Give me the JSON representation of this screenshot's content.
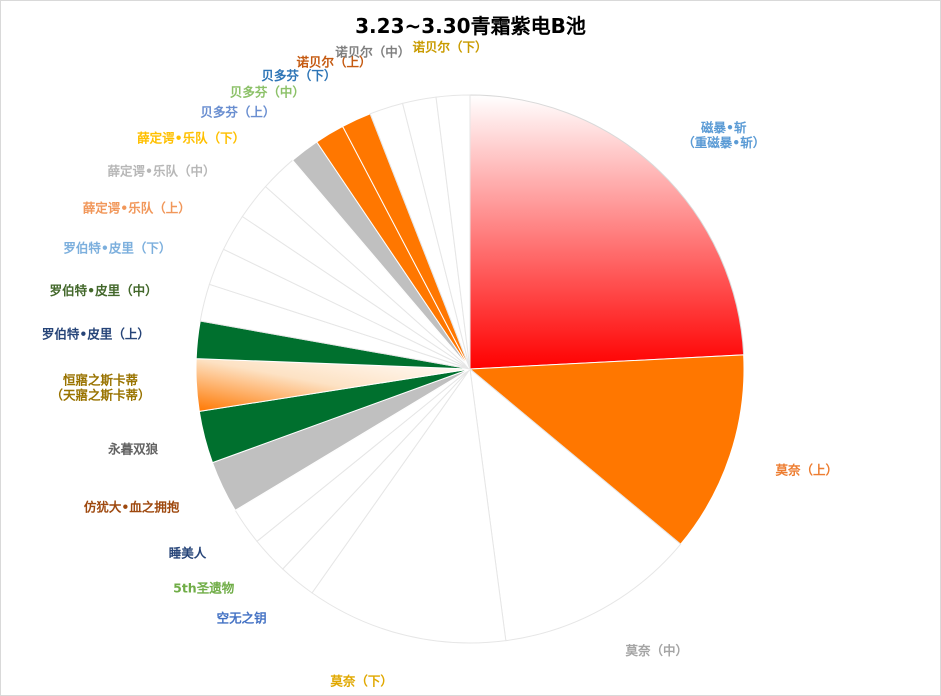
{
  "chart_data": {
    "type": "pie",
    "title": "3.23~3.30青霜紫电B池",
    "start_angle_deg": 0,
    "direction": "clockwise",
    "slices": [
      {
        "label": "磁暴•斩",
        "label2": "（重磁暴•斩）",
        "value": 22.0,
        "fill": "gradient-red",
        "stroke": "#d9d9d9",
        "label_color": "#5b9bd5"
      },
      {
        "label": "莫奈（上）",
        "value": 10.8,
        "fill": "#ff7700",
        "stroke": "#ffffff",
        "label_color": "#ed7d31"
      },
      {
        "label": "莫奈（中）",
        "value": 10.8,
        "fill": "#ffffff",
        "stroke": "#e6e6e6",
        "label_color": "#a5a5a5"
      },
      {
        "label": "莫奈（下）",
        "value": 10.8,
        "fill": "#ffffff",
        "stroke": "#e6e6e6",
        "label_color": "#e0a800"
      },
      {
        "label": "空无之钥",
        "value": 2.0,
        "fill": "#ffffff",
        "stroke": "#e6e6e6",
        "label_color": "#4472c4"
      },
      {
        "label": "5th圣遗物",
        "value": 2.0,
        "fill": "#ffffff",
        "stroke": "#e6e6e6",
        "label_color": "#70ad47"
      },
      {
        "label": "睡美人",
        "value": 2.0,
        "fill": "#ffffff",
        "stroke": "#e6e6e6",
        "label_color": "#264478"
      },
      {
        "label": "仿犹大•血之拥抱",
        "value": 2.8,
        "fill": "#c0c0c0",
        "stroke": "#ffffff",
        "label_color": "#9e480e"
      },
      {
        "label": "永暮双狼",
        "value": 2.8,
        "fill": "#00702e",
        "stroke": "#ffffff",
        "label_color": "#636363"
      },
      {
        "label": "恒寤之斯卡蒂",
        "label2": "（天寤之斯卡蒂）",
        "value": 2.8,
        "fill": "gradient-orange",
        "stroke": "#ffffff",
        "label_color": "#997300"
      },
      {
        "label": "罗伯特•皮里（上）",
        "value": 2.0,
        "fill": "#00702e",
        "stroke": "#ffffff",
        "label_color": "#264478"
      },
      {
        "label": "罗伯特•皮里（中）",
        "value": 2.0,
        "fill": "#ffffff",
        "stroke": "#e6e6e6",
        "label_color": "#43682b"
      },
      {
        "label": "罗伯特•皮里（下）",
        "value": 2.0,
        "fill": "#ffffff",
        "stroke": "#e6e6e6",
        "label_color": "#7cafdd"
      },
      {
        "label": "薛定谔•乐队（上）",
        "value": 2.0,
        "fill": "#ffffff",
        "stroke": "#e6e6e6",
        "label_color": "#f1975a"
      },
      {
        "label": "薛定谔•乐队（中）",
        "value": 2.0,
        "fill": "#ffffff",
        "stroke": "#e6e6e6",
        "label_color": "#b7b7b7"
      },
      {
        "label": "薛定谔•乐队（下）",
        "value": 2.0,
        "fill": "#ffffff",
        "stroke": "#e6e6e6",
        "label_color": "#ffc000"
      },
      {
        "label": "贝多芬（上）",
        "value": 1.6,
        "fill": "#c0c0c0",
        "stroke": "#ffffff",
        "label_color": "#698ed0"
      },
      {
        "label": "贝多芬（中）",
        "value": 1.6,
        "fill": "#ff7700",
        "stroke": "#ffffff",
        "label_color": "#8cc168"
      },
      {
        "label": "贝多芬（下）",
        "value": 1.6,
        "fill": "#ff7700",
        "stroke": "#ffffff",
        "label_color": "#2e75b6"
      },
      {
        "label": "诺贝尔（上）",
        "value": 1.8,
        "fill": "#ffffff",
        "stroke": "#e6e6e6",
        "label_color": "#c55a11"
      },
      {
        "label": "诺贝尔（中）",
        "value": 1.8,
        "fill": "#ffffff",
        "stroke": "#e6e6e6",
        "label_color": "#7f7f7f"
      },
      {
        "label": "诺贝尔（下）",
        "value": 1.8,
        "fill": "#ffffff",
        "stroke": "#e6e6e6",
        "label_color": "#c99b00"
      }
    ]
  }
}
